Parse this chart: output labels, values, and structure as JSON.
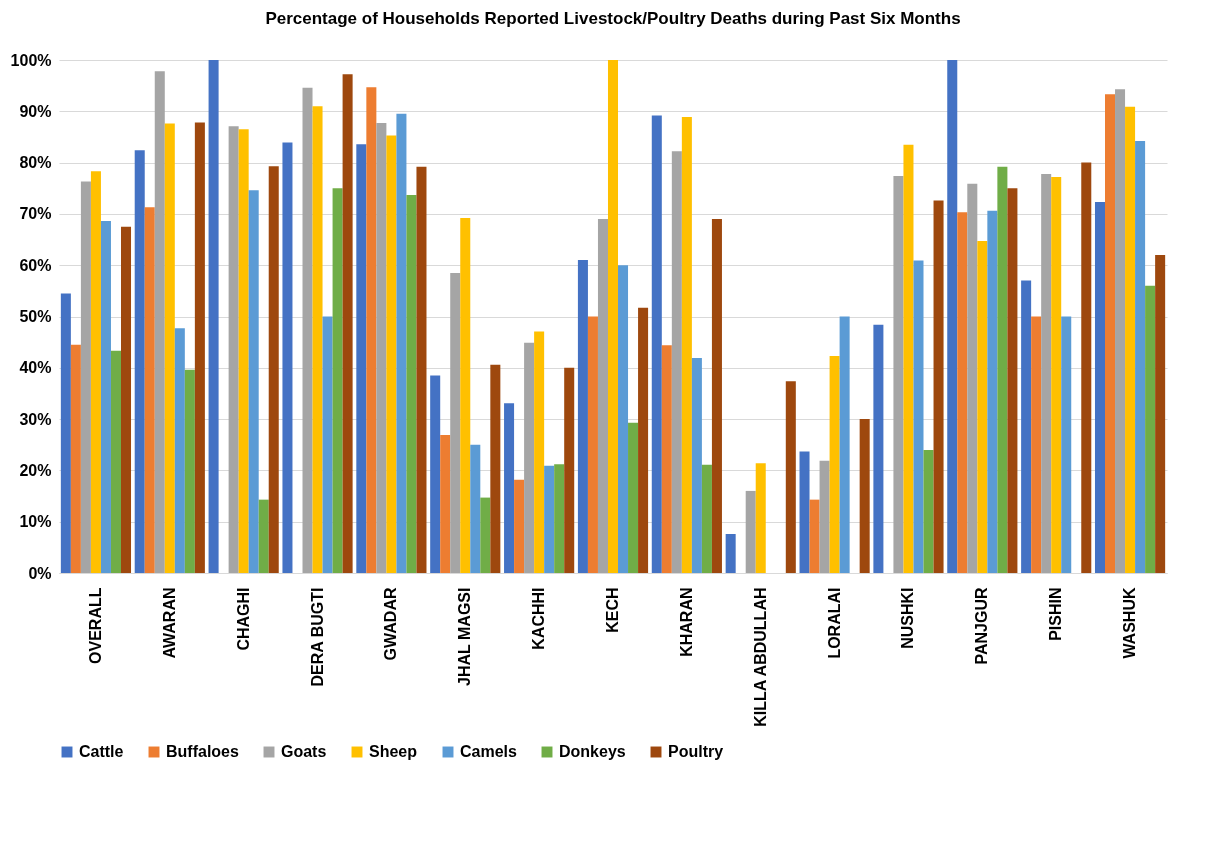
{
  "chart_data": {
    "type": "bar",
    "title": "Percentage of Households Reported Livestock/Poultry Deaths during Past Six Months",
    "categories": [
      "OVERALL",
      "AWARAN",
      "CHAGHI",
      "DERA BUGTI",
      "GWADAR",
      "JHAL MAGSI",
      "KACHHI",
      "KECH",
      "KHARAN",
      "KILLA ABDULLAH",
      "LORALAI",
      "NUSHKI",
      "PANJGUR",
      "PISHIN",
      "WASHUK"
    ],
    "series": [
      {
        "name": "Cattle",
        "color": "#4472c4",
        "values": [
          54.5,
          82.4,
          100,
          83.9,
          83.6,
          38.5,
          33.1,
          61.0,
          89.2,
          7.6,
          23.7,
          48.4,
          100,
          57.0,
          72.3
        ]
      },
      {
        "name": "Buffaloes",
        "color": "#ed7d31",
        "values": [
          44.5,
          71.3,
          0,
          0,
          94.7,
          26.9,
          18.2,
          50.0,
          44.4,
          0,
          14.3,
          0,
          70.3,
          50.0,
          93.3
        ]
      },
      {
        "name": "Goats",
        "color": "#a5a5a5",
        "values": [
          76.3,
          97.8,
          87.1,
          94.6,
          87.7,
          58.5,
          44.9,
          69.0,
          82.2,
          16.0,
          21.9,
          77.4,
          75.9,
          77.8,
          94.3
        ]
      },
      {
        "name": "Sheep",
        "color": "#ffc000",
        "values": [
          78.3,
          87.6,
          86.5,
          91.0,
          85.3,
          69.2,
          47.1,
          100,
          88.9,
          21.4,
          42.3,
          83.5,
          64.7,
          77.2,
          90.9
        ]
      },
      {
        "name": "Camels",
        "color": "#5b9bd5",
        "values": [
          68.6,
          47.7,
          74.6,
          50.0,
          89.5,
          25.0,
          20.9,
          60.0,
          41.9,
          0,
          50.0,
          60.9,
          70.6,
          50.0,
          84.2
        ]
      },
      {
        "name": "Donkeys",
        "color": "#70ad47",
        "values": [
          43.3,
          39.6,
          14.3,
          75.0,
          73.7,
          14.7,
          21.2,
          29.3,
          21.1,
          0,
          0,
          24.0,
          79.2,
          0,
          56.0
        ]
      },
      {
        "name": "Poultry",
        "color": "#9e480e",
        "values": [
          67.5,
          87.8,
          79.3,
          97.2,
          79.2,
          40.6,
          40.0,
          51.7,
          69.0,
          37.4,
          30.0,
          72.6,
          75.0,
          80.0,
          62.0
        ]
      }
    ],
    "ylim": [
      0,
      100
    ],
    "yticks": [
      {
        "value": 0,
        "label": "0%"
      },
      {
        "value": 10,
        "label": "10%"
      },
      {
        "value": 20,
        "label": "20%"
      },
      {
        "value": 30,
        "label": "30%"
      },
      {
        "value": 40,
        "label": "40%"
      },
      {
        "value": 50,
        "label": "50%"
      },
      {
        "value": 60,
        "label": "60%"
      },
      {
        "value": 70,
        "label": "70%"
      },
      {
        "value": 80,
        "label": "80%"
      },
      {
        "value": 90,
        "label": "90%"
      },
      {
        "value": 100,
        "label": "100%"
      }
    ],
    "grid": "y",
    "legend": "bottom"
  }
}
